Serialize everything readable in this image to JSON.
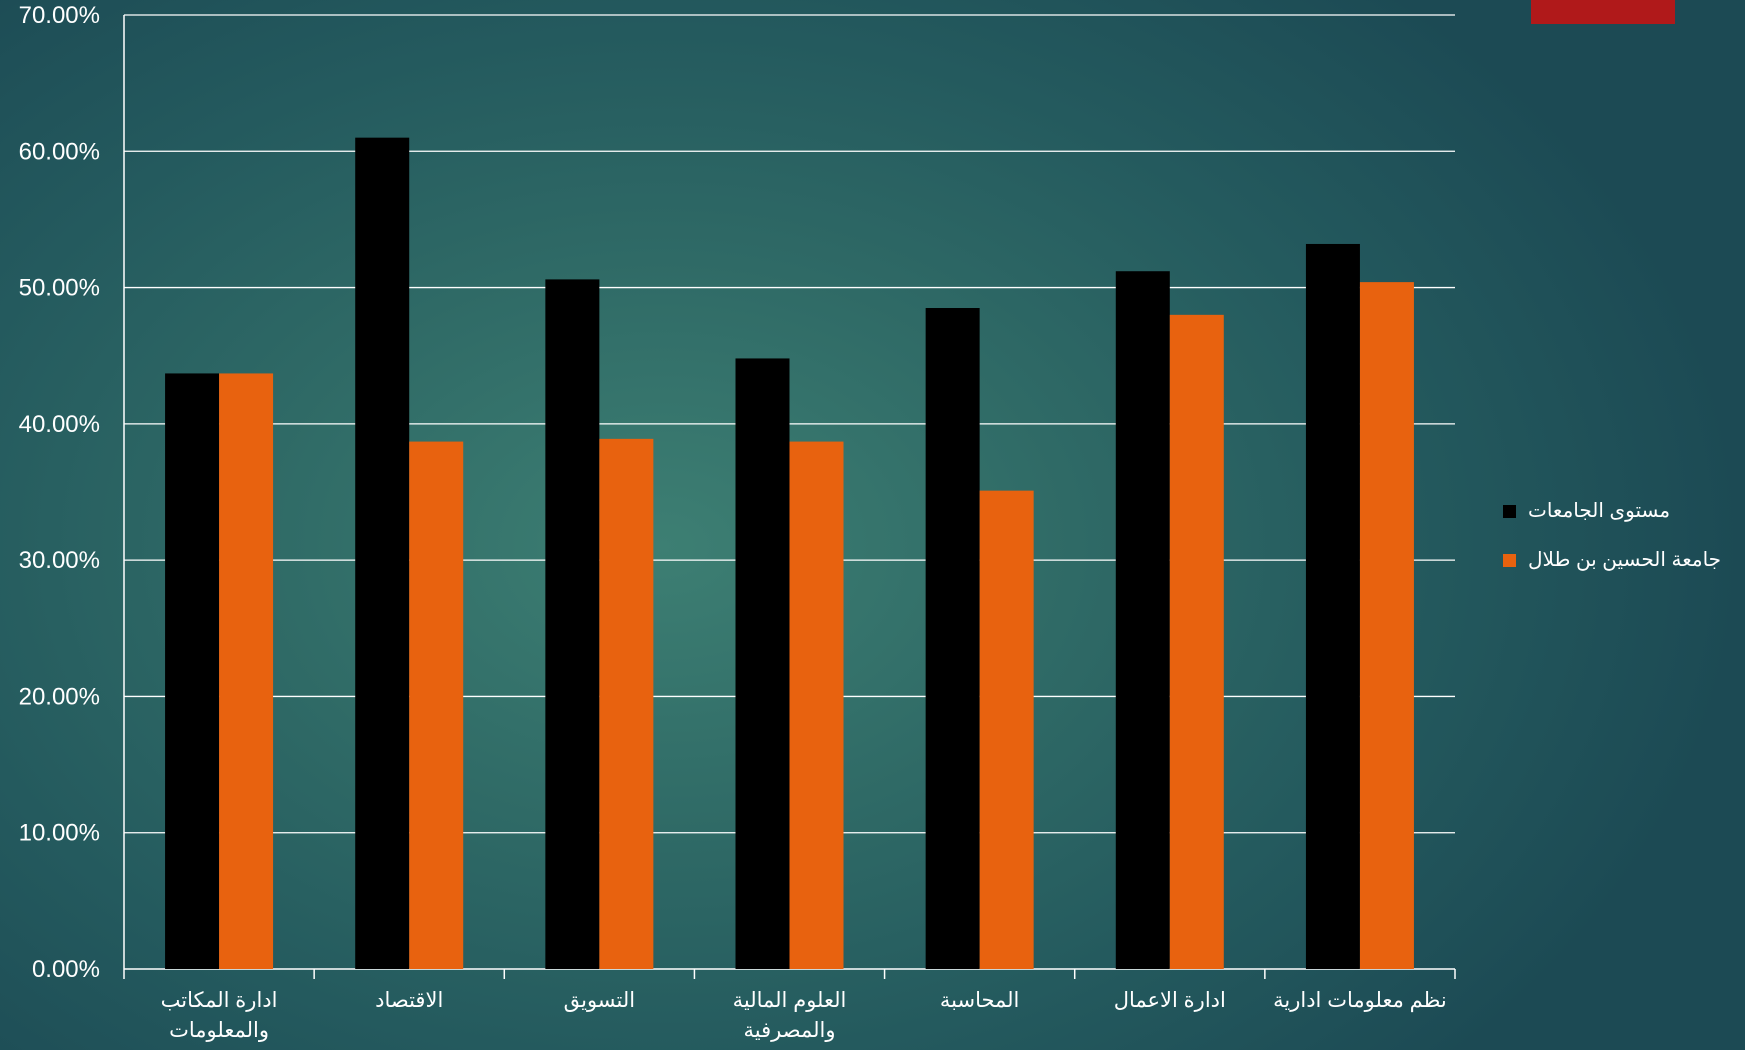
{
  "colors": {
    "accent": "#b0191a",
    "grid": "#ffffff",
    "text": "#ffffff"
  },
  "legend": {
    "position": "right",
    "items": [
      {
        "label": "مستوى الجامعات",
        "color": "#000000"
      },
      {
        "label": "جامعة الحسين بن طلال",
        "color": "#e8620f"
      }
    ]
  },
  "chart_data": {
    "type": "bar",
    "title": "",
    "xlabel": "",
    "ylabel": "",
    "ylim": [
      0,
      0.7
    ],
    "grid": true,
    "y_ticks": [
      "0.00%",
      "10.00%",
      "20.00%",
      "30.00%",
      "40.00%",
      "50.00%",
      "60.00%",
      "70.00%"
    ],
    "categories": [
      "ادارة المكاتب والمعلومات",
      "الاقتصاد",
      "التسويق",
      "العلوم المالية والمصرفية",
      "المحاسبة",
      "ادارة الاعمال",
      "نظم معلومات ادارية"
    ],
    "category_lines": [
      [
        "ادارة المكاتب",
        "والمعلومات"
      ],
      [
        "الاقتصاد"
      ],
      [
        "التسويق"
      ],
      [
        "العلوم المالية",
        "والمصرفية"
      ],
      [
        "المحاسبة"
      ],
      [
        "ادارة الاعمال"
      ],
      [
        "نظم معلومات ادارية"
      ]
    ],
    "series": [
      {
        "name": "مستوى الجامعات",
        "color": "#000000",
        "values": [
          0.437,
          0.61,
          0.506,
          0.448,
          0.485,
          0.512,
          0.532
        ]
      },
      {
        "name": "جامعة الحسين بن طلال",
        "color": "#e8620f",
        "values": [
          0.437,
          0.387,
          0.389,
          0.387,
          0.351,
          0.48,
          0.504
        ]
      }
    ]
  }
}
